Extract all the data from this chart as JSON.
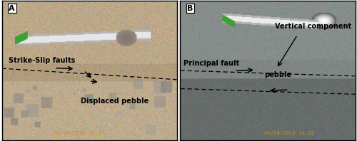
{
  "fig_width": 5.0,
  "fig_height": 1.98,
  "dpi": 100,
  "label_fontsize": 8,
  "annotation_fontsize": 7,
  "label_A": "A",
  "label_B": "B",
  "ann_A_fault": "Strike-Slip faults",
  "ann_A_pebble": "Displaced pebble",
  "ann_B_principal": "Principal fault",
  "ann_B_vertical": "Vertical component",
  "ann_B_pebble": "pebble",
  "timestamp_A": "11/10/2016 15:19",
  "timestamp_B": "06/08/2016 14:02",
  "timestamp_color": "#c8900a"
}
